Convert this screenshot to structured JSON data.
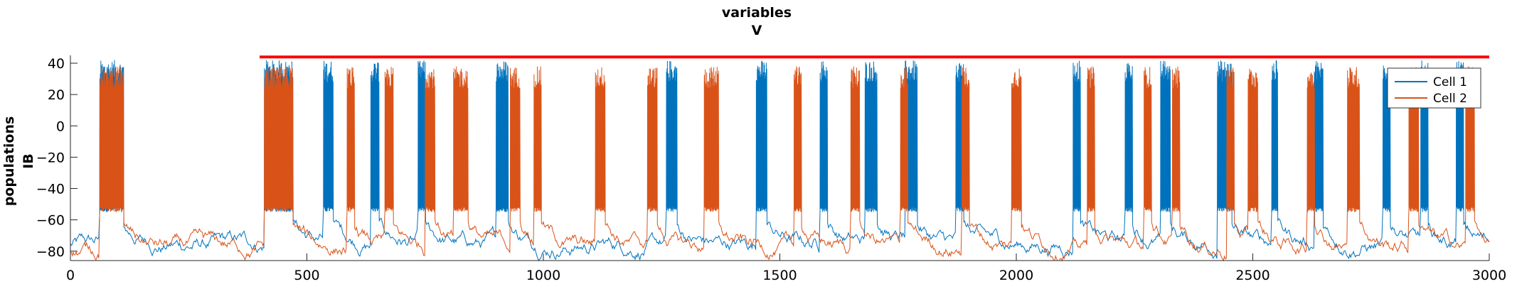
{
  "chart_data": {
    "type": "line",
    "title": "variables",
    "subtitle": "V",
    "ylabel": "populations",
    "ylabel2": "IB",
    "xlim": [
      0,
      3000
    ],
    "ylim": [
      -86,
      45
    ],
    "xticks": [
      0,
      500,
      1000,
      1500,
      2000,
      2500,
      3000
    ],
    "yticks": [
      -80,
      -60,
      -40,
      -20,
      0,
      20,
      40
    ],
    "grid": false,
    "legend": {
      "placement": "top-right"
    },
    "reference_line": {
      "x": [
        400,
        3000
      ],
      "y": 44,
      "color": "#ff0000"
    },
    "series": [
      {
        "name": "Cell 1",
        "color": "#0072bd",
        "baseline": -76,
        "plateau": -55,
        "spike_peak": 40,
        "bursts": [
          [
            62,
            112
          ],
          [
            410,
            470
          ],
          [
            535,
            555
          ],
          [
            635,
            652
          ],
          [
            735,
            750
          ],
          [
            900,
            925
          ],
          [
            1260,
            1282
          ],
          [
            1450,
            1472
          ],
          [
            1585,
            1600
          ],
          [
            1680,
            1705
          ],
          [
            1765,
            1790
          ],
          [
            1872,
            1888
          ],
          [
            2120,
            2135
          ],
          [
            2230,
            2245
          ],
          [
            2305,
            2325
          ],
          [
            2425,
            2455
          ],
          [
            2540,
            2552
          ],
          [
            2630,
            2648
          ],
          [
            2775,
            2790
          ],
          [
            2855,
            2870
          ],
          [
            2930,
            2945
          ]
        ]
      },
      {
        "name": "Cell 2",
        "color": "#d95319",
        "baseline": -78,
        "plateau": -55,
        "spike_peak": 36,
        "bursts": [
          [
            62,
            112
          ],
          [
            410,
            470
          ],
          [
            585,
            600
          ],
          [
            665,
            682
          ],
          [
            750,
            770
          ],
          [
            810,
            840
          ],
          [
            930,
            950
          ],
          [
            980,
            995
          ],
          [
            1110,
            1130
          ],
          [
            1220,
            1240
          ],
          [
            1340,
            1370
          ],
          [
            1530,
            1545
          ],
          [
            1650,
            1668
          ],
          [
            1755,
            1770
          ],
          [
            1885,
            1900
          ],
          [
            1990,
            2010
          ],
          [
            2150,
            2165
          ],
          [
            2270,
            2285
          ],
          [
            2330,
            2345
          ],
          [
            2445,
            2460
          ],
          [
            2490,
            2510
          ],
          [
            2615,
            2630
          ],
          [
            2700,
            2725
          ],
          [
            2830,
            2850
          ],
          [
            2950,
            2968
          ]
        ]
      }
    ]
  }
}
